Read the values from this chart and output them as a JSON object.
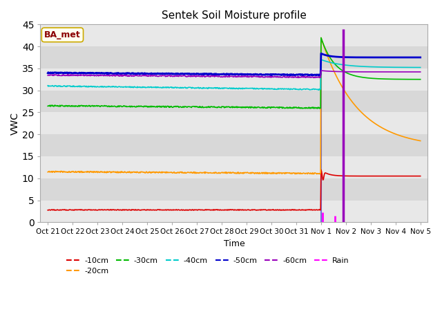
{
  "title": "Sentek Soil Moisture profile",
  "xlabel": "Time",
  "ylabel": "VWC",
  "ylim": [
    0,
    45
  ],
  "annotation_text": "BA_met",
  "annotation_color": "#8B0000",
  "annotation_bg": "#fffff0",
  "plot_bg": "#e8e8e8",
  "x_tick_labels": [
    "Oct 21",
    "Oct 22",
    "Oct 23",
    "Oct 24",
    "Oct 25",
    "Oct 26",
    "Oct 27",
    "Oct 28",
    "Oct 29",
    "Oct 30",
    "Oct 31",
    "Nov 1",
    "Nov 2",
    "Nov 3",
    "Nov 4",
    "Nov 5"
  ],
  "line_colors": {
    "-10cm": "#dd0000",
    "-20cm": "#ff9900",
    "-30cm": "#00bb00",
    "-40cm": "#00cccc",
    "-50cm": "#0000cc",
    "-60cm": "#9900bb",
    "Rain": "#ff00ff"
  },
  "event_day": 11.0,
  "rain1_day": 11.05,
  "rain2_day": 11.55,
  "irr_day": 11.9,
  "num_points": 800,
  "date_start": 0,
  "date_end": 15
}
